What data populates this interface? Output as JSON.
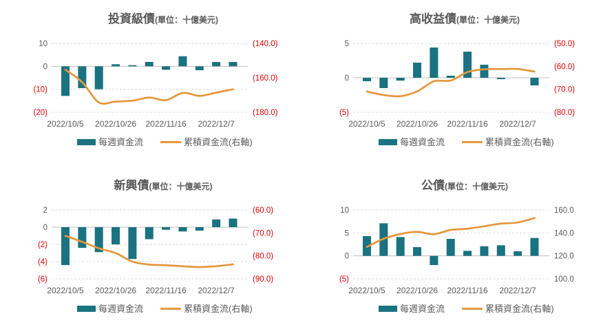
{
  "colors": {
    "bar": "#1B7280",
    "line": "#E5973C",
    "negative_label": "#E10000",
    "text": "#595959",
    "gridline": "#D9D9D9",
    "zero_line": "#BFBFBF",
    "background": "#FFFFFF"
  },
  "legend": {
    "bar_label": "每週資金流",
    "line_label": "累積資金流(右軸)"
  },
  "chart_data": [
    {
      "type": "bar+line dual-axis",
      "title": "投資級債",
      "subtitle": "(單位：十億美元)",
      "x_ticks": {
        "labels": [
          "2022/10/5",
          "2022/10/26",
          "2022/11/16",
          "2022/12/7"
        ],
        "at_point_index": [
          0,
          3,
          6,
          9
        ]
      },
      "series": [
        {
          "name": "每週資金流",
          "type": "bar",
          "axis": "left",
          "values": [
            -12.9,
            -9.5,
            -10.0,
            0.9,
            0.5,
            1.9,
            -1.5,
            4.4,
            -1.7,
            1.9,
            1.9
          ]
        },
        {
          "name": "累積資金流(右軸)",
          "type": "line",
          "axis": "right",
          "values": [
            -155.3,
            -162.5,
            -174.3,
            -173.8,
            -173.3,
            -171.5,
            -173.0,
            -168.8,
            -170.5,
            -168.6,
            -166.7
          ]
        }
      ],
      "left_axis": {
        "tick_labels": [
          "10",
          "0",
          "(10)",
          "(20)"
        ],
        "tick_values": [
          10,
          0,
          -10,
          -20
        ],
        "max": 10,
        "min": -20
      },
      "right_axis": {
        "tick_labels": [
          "(140.0)",
          "(160.0)",
          "(180.0)"
        ],
        "tick_values": [
          -140,
          -160,
          -180
        ],
        "max": -140,
        "min": -180
      }
    },
    {
      "type": "bar+line dual-axis",
      "title": "高收益債",
      "subtitle": "(單位：十億美元)",
      "x_ticks": {
        "labels": [
          "2022/10/5",
          "2022/10/26",
          "2022/11/16",
          "2022/12/7"
        ],
        "at_point_index": [
          0,
          3,
          6,
          9
        ]
      },
      "series": [
        {
          "name": "每週資金流",
          "type": "bar",
          "axis": "left",
          "values": [
            -0.5,
            -1.5,
            -0.4,
            2.2,
            4.4,
            0.3,
            3.8,
            1.9,
            -0.2,
            0.0,
            -1.1
          ]
        },
        {
          "name": "累積資金流(右軸)",
          "type": "line",
          "axis": "right",
          "values": [
            -71.0,
            -72.5,
            -73.0,
            -70.9,
            -66.5,
            -66.2,
            -62.5,
            -61.3,
            -61.2,
            -61.2,
            -62.3
          ]
        }
      ],
      "left_axis": {
        "tick_labels": [
          "5",
          "0",
          "(5)"
        ],
        "tick_values": [
          5,
          0,
          -5
        ],
        "max": 5,
        "min": -5
      },
      "right_axis": {
        "tick_labels": [
          "(50.0)",
          "(60.0)",
          "(70.0)",
          "(80.0)"
        ],
        "tick_values": [
          -50,
          -60,
          -70,
          -80
        ],
        "max": -50,
        "min": -80
      }
    },
    {
      "type": "bar+line dual-axis",
      "title": "新興債",
      "subtitle": "(單位：十億美元)",
      "x_ticks": {
        "labels": [
          "2022/10/5",
          "2022/10/26",
          "2022/11/16",
          "2022/12/7"
        ],
        "at_point_index": [
          0,
          3,
          6,
          9
        ]
      },
      "series": [
        {
          "name": "每週資金流",
          "type": "bar",
          "axis": "left",
          "values": [
            -4.4,
            -2.4,
            -2.9,
            -2.0,
            -3.7,
            -1.4,
            -0.3,
            -0.5,
            -0.4,
            0.9,
            1.0
          ]
        },
        {
          "name": "累積資金流(右軸)",
          "type": "line",
          "axis": "right",
          "values": [
            -71.3,
            -73.9,
            -76.7,
            -78.8,
            -82.5,
            -83.8,
            -84.1,
            -84.5,
            -84.9,
            -84.5,
            -83.7
          ]
        }
      ],
      "left_axis": {
        "tick_labels": [
          "2",
          "0",
          "(2)",
          "(4)",
          "(6)"
        ],
        "tick_values": [
          2,
          0,
          -2,
          -4,
          -6
        ],
        "max": 2,
        "min": -6
      },
      "right_axis": {
        "tick_labels": [
          "(60.0)",
          "(70.0)",
          "(80.0)",
          "(90.0)"
        ],
        "tick_values": [
          -60,
          -70,
          -80,
          -90
        ],
        "max": -60,
        "min": -90
      }
    },
    {
      "type": "bar+line dual-axis",
      "title": "公債",
      "subtitle": "(單位：十億美元)",
      "x_ticks": {
        "labels": [
          "2022/10/5",
          "2022/10/26",
          "2022/11/16",
          "2022/12/7"
        ],
        "at_point_index": [
          0,
          3,
          6,
          9
        ]
      },
      "series": [
        {
          "name": "每週資金流",
          "type": "bar",
          "axis": "left",
          "values": [
            4.3,
            7.1,
            4.1,
            1.9,
            -2.0,
            3.7,
            1.1,
            2.1,
            2.3,
            1.0,
            3.9
          ]
        },
        {
          "name": "累積資金流(右軸)",
          "type": "line",
          "axis": "right",
          "values": [
            127.8,
            134.9,
            139.0,
            140.9,
            138.9,
            142.6,
            143.7,
            145.8,
            148.1,
            149.1,
            153.0
          ]
        }
      ],
      "left_axis": {
        "tick_labels": [
          "10",
          "5",
          "0",
          "(5)"
        ],
        "tick_values": [
          10,
          5,
          0,
          -5
        ],
        "max": 10,
        "min": -5
      },
      "right_axis": {
        "tick_labels": [
          "160.0",
          "140.0",
          "120.0",
          "100.0"
        ],
        "tick_values": [
          160,
          140,
          120,
          100
        ],
        "max": 160,
        "min": 100
      }
    }
  ]
}
